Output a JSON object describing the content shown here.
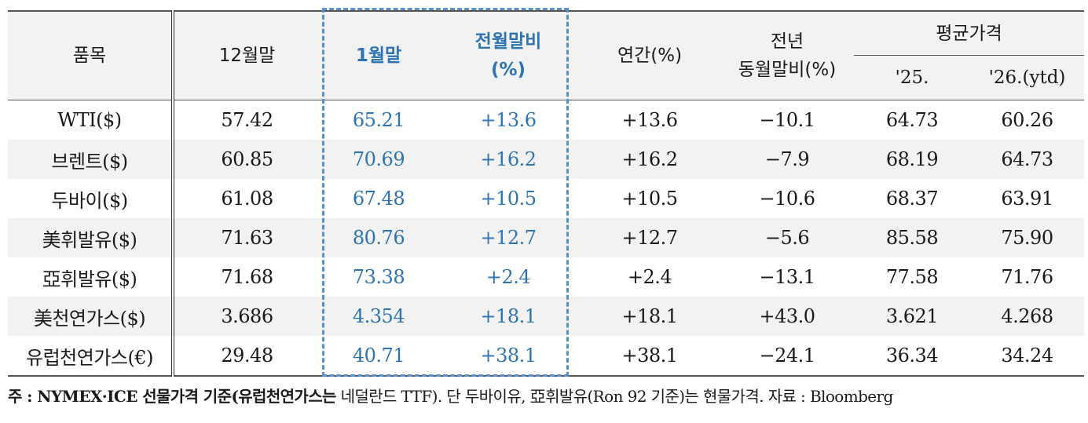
{
  "table": {
    "headers": {
      "item": "품목",
      "dec_end": "12월말",
      "jan_end": "1월말",
      "mom_line1": "전월말비",
      "mom_line2": "(%)",
      "annual": "연간(%)",
      "yoy_line1": "전년",
      "yoy_line2": "동월말비(%)",
      "avg_price": "평균가격",
      "avg_25": "'25.",
      "avg_26": "'26.(ytd)"
    },
    "rows": [
      {
        "item": "WTI($)",
        "dec": "57.42",
        "jan": "65.21",
        "mom": "+13.6",
        "annual": "+13.6",
        "yoy": "−10.1",
        "avg25": "64.73",
        "avg26": "60.26"
      },
      {
        "item": "브렌트($)",
        "dec": "60.85",
        "jan": "70.69",
        "mom": "+16.2",
        "annual": "+16.2",
        "yoy": "−7.9",
        "avg25": "68.19",
        "avg26": "64.73"
      },
      {
        "item": "두바이($)",
        "dec": "61.08",
        "jan": "67.48",
        "mom": "+10.5",
        "annual": "+10.5",
        "yoy": "−10.6",
        "avg25": "68.37",
        "avg26": "63.91"
      },
      {
        "item": "美휘발유($)",
        "dec": "71.63",
        "jan": "80.76",
        "mom": "+12.7",
        "annual": "+12.7",
        "yoy": "−5.6",
        "avg25": "85.58",
        "avg26": "75.90"
      },
      {
        "item": "亞휘발유($)",
        "dec": "71.68",
        "jan": "73.38",
        "mom": "+2.4",
        "annual": "+2.4",
        "yoy": "−13.1",
        "avg25": "77.58",
        "avg26": "71.76"
      },
      {
        "item": "美천연가스($)",
        "dec": "3.686",
        "jan": "4.354",
        "mom": "+18.1",
        "annual": "+18.1",
        "yoy": "+43.0",
        "avg25": "3.621",
        "avg26": "4.268"
      },
      {
        "item": "유럽천연가스(€)",
        "dec": "29.48",
        "jan": "40.71",
        "mom": "+38.1",
        "annual": "+38.1",
        "yoy": "−24.1",
        "avg25": "36.34",
        "avg26": "34.24"
      }
    ]
  },
  "note": {
    "prefix": "주 : NYMEX·ICE 선물가격 기준(유럽천연가스는",
    "rest": " 네덜란드 TTF). 단 두바이유, 亞휘발유(Ron 92 기준)는 현물가격. 자료 : Bloomberg"
  },
  "colors": {
    "highlight_blue": "#2e74b5",
    "dashed_box": "#5b8fc9",
    "stripe": "#f2f2f2"
  }
}
